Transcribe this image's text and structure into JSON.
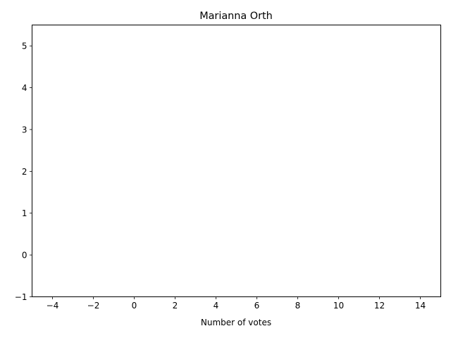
{
  "chart_data": {
    "type": "bar",
    "title": "Marianna Orth",
    "xlabel": "Number of votes",
    "ylabel": "",
    "xlim": [
      -5,
      15
    ],
    "ylim": [
      -1,
      5.5
    ],
    "x_ticks": [
      -4,
      -2,
      0,
      2,
      4,
      6,
      8,
      10,
      12,
      14
    ],
    "x_tick_labels": [
      "−4",
      "−2",
      "0",
      "2",
      "4",
      "6",
      "8",
      "10",
      "12",
      "14"
    ],
    "y_ticks": [
      -1,
      0,
      1,
      2,
      3,
      4,
      5
    ],
    "y_tick_labels": [
      "−1",
      "0",
      "1",
      "2",
      "3",
      "4",
      "5"
    ],
    "categories": [],
    "values": [],
    "grid": false,
    "legend": "none",
    "colors": {
      "axes": "#000000",
      "background": "#ffffff"
    }
  }
}
